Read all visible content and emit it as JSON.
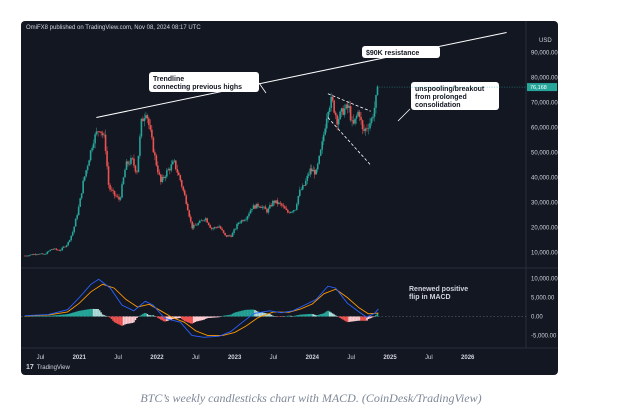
{
  "header": {
    "published": "OmiFX8 published on TradingView.com, Nov 08, 2024 08:17 UTC"
  },
  "footer": {
    "brand": "TradingView"
  },
  "caption": "BTC’s weekly candlesticks chart with MACD. (CoinDesk/TradingView)",
  "colors": {
    "up": "#26a69a",
    "down": "#ef5350",
    "bg": "#131722",
    "text": "#d1d4dc",
    "price_tag": "#26a69a"
  },
  "chart_data": [
    {
      "type": "candlestick",
      "timeframe": "weekly",
      "currency": "USD",
      "y_ticks": [
        "90,000.00",
        "80,000.00",
        "70,000.00",
        "60,000.00",
        "50,000.00",
        "40,000.00",
        "30,000.00",
        "20,000.00",
        "10,000.00"
      ],
      "x_ticks": [
        "Jul",
        "2021",
        "Jul",
        "2022",
        "Jul",
        "2023",
        "Jul",
        "2024",
        "Jul",
        "2025",
        "Jul",
        "2026"
      ],
      "price_tag": "76,168",
      "ylim": [
        5000,
        97000
      ],
      "annotations": {
        "resistance": "$90K resistance",
        "trendline": "Trendline\nconnecting previous highs",
        "breakout": "unspooling/breakout\nfrom prolonged\nconsolidation"
      },
      "trendline": [
        [
          2021.22,
          64000
        ],
        [
          2026.5,
          98000
        ]
      ],
      "wedge_upper": [
        [
          2024.2,
          73500
        ],
        [
          2024.75,
          66500
        ]
      ],
      "wedge_lower": [
        [
          2024.2,
          64000
        ],
        [
          2024.75,
          45000
        ]
      ],
      "price_path": [
        [
          2020.3,
          8700
        ],
        [
          2020.45,
          9500
        ],
        [
          2020.55,
          9200
        ],
        [
          2020.65,
          11500
        ],
        [
          2020.75,
          10800
        ],
        [
          2020.85,
          13500
        ],
        [
          2020.92,
          18500
        ],
        [
          2021.0,
          29000
        ],
        [
          2021.05,
          38000
        ],
        [
          2021.12,
          47000
        ],
        [
          2021.18,
          55000
        ],
        [
          2021.26,
          60000
        ],
        [
          2021.33,
          55000
        ],
        [
          2021.38,
          36000
        ],
        [
          2021.45,
          33000
        ],
        [
          2021.52,
          31000
        ],
        [
          2021.6,
          45000
        ],
        [
          2021.68,
          47000
        ],
        [
          2021.74,
          42000
        ],
        [
          2021.8,
          62000
        ],
        [
          2021.86,
          67000
        ],
        [
          2021.92,
          57000
        ],
        [
          2021.98,
          47000
        ],
        [
          2022.05,
          38000
        ],
        [
          2022.12,
          42000
        ],
        [
          2022.22,
          46000
        ],
        [
          2022.3,
          39000
        ],
        [
          2022.38,
          30000
        ],
        [
          2022.45,
          20000
        ],
        [
          2022.55,
          22000
        ],
        [
          2022.62,
          24000
        ],
        [
          2022.7,
          19500
        ],
        [
          2022.8,
          20500
        ],
        [
          2022.88,
          16500
        ],
        [
          2022.96,
          16800
        ],
        [
          2023.05,
          22000
        ],
        [
          2023.15,
          24000
        ],
        [
          2023.22,
          28000
        ],
        [
          2023.32,
          29000
        ],
        [
          2023.42,
          26500
        ],
        [
          2023.5,
          30500
        ],
        [
          2023.6,
          29000
        ],
        [
          2023.68,
          26000
        ],
        [
          2023.78,
          27500
        ],
        [
          2023.83,
          34000
        ],
        [
          2023.9,
          37000
        ],
        [
          2023.97,
          43000
        ],
        [
          2024.05,
          42000
        ],
        [
          2024.12,
          52000
        ],
        [
          2024.2,
          68000
        ],
        [
          2024.25,
          71000
        ],
        [
          2024.32,
          63000
        ],
        [
          2024.4,
          67000
        ],
        [
          2024.47,
          68000
        ],
        [
          2024.52,
          60000
        ],
        [
          2024.6,
          67000
        ],
        [
          2024.65,
          58000
        ],
        [
          2024.7,
          60000
        ],
        [
          2024.76,
          63000
        ],
        [
          2024.8,
          68000
        ],
        [
          2024.85,
          76168
        ]
      ]
    },
    {
      "type": "macd",
      "y_ticks": [
        "10,000.00",
        "5,000.00",
        "0.00",
        "-5,000.00"
      ],
      "ylim": [
        -7000,
        12000
      ],
      "annotation": "Renewed positive\nflip in MACD",
      "macd_line": [
        [
          2020.3,
          200
        ],
        [
          2020.6,
          500
        ],
        [
          2020.85,
          1800
        ],
        [
          2021.0,
          5000
        ],
        [
          2021.15,
          8500
        ],
        [
          2021.25,
          9800
        ],
        [
          2021.4,
          7500
        ],
        [
          2021.55,
          3000
        ],
        [
          2021.7,
          1500
        ],
        [
          2021.85,
          4000
        ],
        [
          2021.95,
          3000
        ],
        [
          2022.1,
          -500
        ],
        [
          2022.3,
          -1500
        ],
        [
          2022.45,
          -5000
        ],
        [
          2022.6,
          -5500
        ],
        [
          2022.8,
          -5200
        ],
        [
          2022.95,
          -4000
        ],
        [
          2023.1,
          -1500
        ],
        [
          2023.25,
          800
        ],
        [
          2023.45,
          1500
        ],
        [
          2023.6,
          1000
        ],
        [
          2023.75,
          1500
        ],
        [
          2023.9,
          3000
        ],
        [
          2024.05,
          4500
        ],
        [
          2024.2,
          8000
        ],
        [
          2024.3,
          7500
        ],
        [
          2024.45,
          3500
        ],
        [
          2024.6,
          1200
        ],
        [
          2024.7,
          -200
        ],
        [
          2024.8,
          800
        ],
        [
          2024.85,
          2000
        ]
      ],
      "signal_line": [
        [
          2020.3,
          100
        ],
        [
          2020.6,
          350
        ],
        [
          2020.85,
          1200
        ],
        [
          2021.0,
          3500
        ],
        [
          2021.15,
          6500
        ],
        [
          2021.3,
          8500
        ],
        [
          2021.45,
          7500
        ],
        [
          2021.6,
          4500
        ],
        [
          2021.75,
          2500
        ],
        [
          2021.9,
          3200
        ],
        [
          2022.05,
          1500
        ],
        [
          2022.2,
          -300
        ],
        [
          2022.35,
          -1500
        ],
        [
          2022.5,
          -3800
        ],
        [
          2022.65,
          -5000
        ],
        [
          2022.85,
          -5000
        ],
        [
          2023.0,
          -4200
        ],
        [
          2023.15,
          -2500
        ],
        [
          2023.3,
          -300
        ],
        [
          2023.5,
          1200
        ],
        [
          2023.7,
          1100
        ],
        [
          2023.85,
          2000
        ],
        [
          2024.0,
          3300
        ],
        [
          2024.15,
          6000
        ],
        [
          2024.3,
          7200
        ],
        [
          2024.45,
          5000
        ],
        [
          2024.6,
          2300
        ],
        [
          2024.72,
          700
        ],
        [
          2024.85,
          900
        ]
      ]
    }
  ]
}
